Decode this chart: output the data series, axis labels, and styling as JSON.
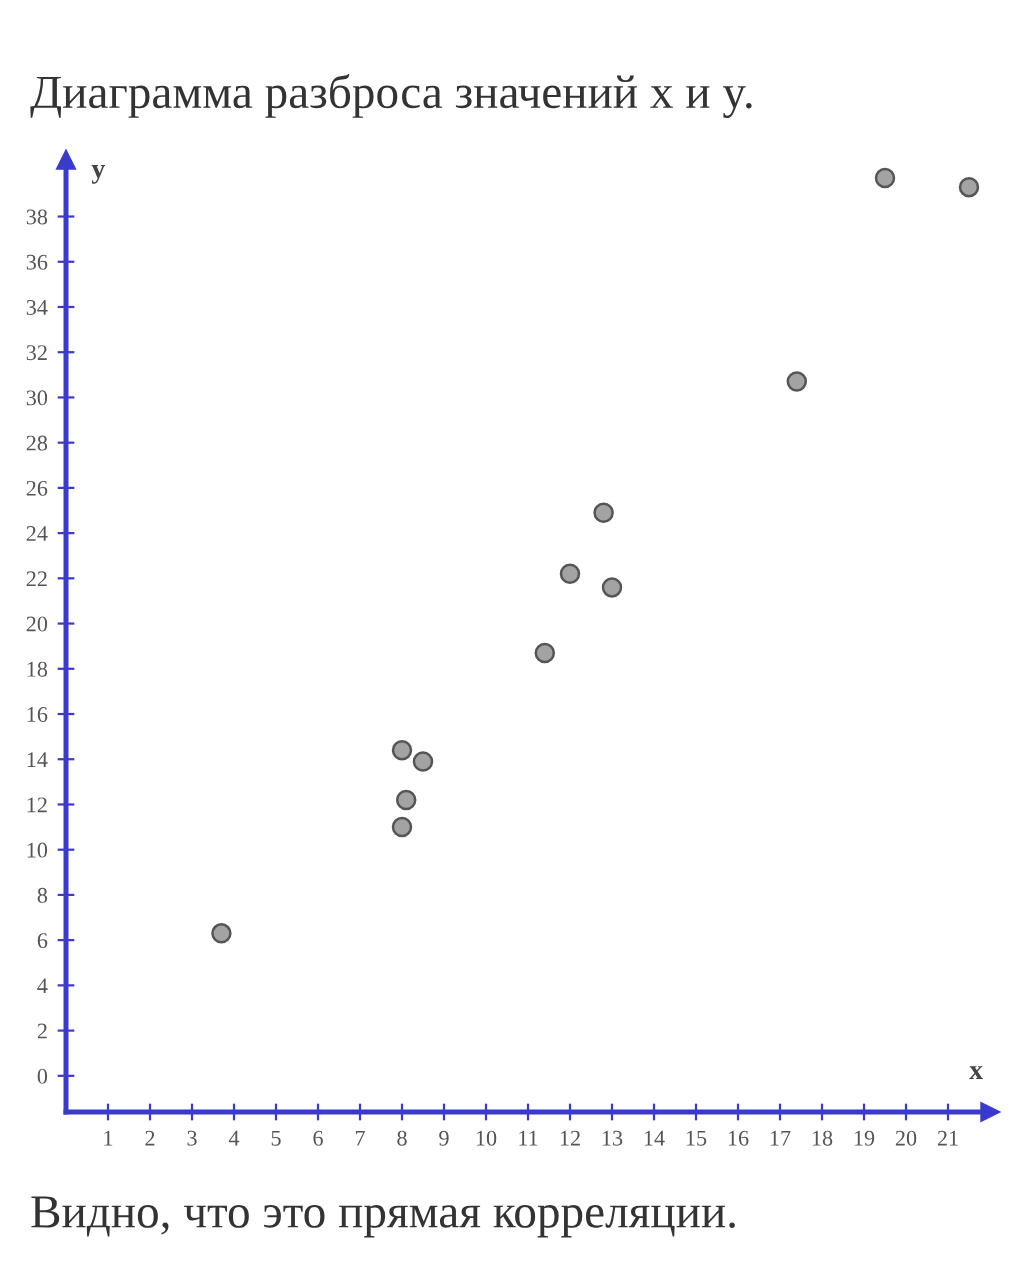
{
  "chart_data": {
    "type": "scatter",
    "title": "Диаграмма разброса значений x и y.",
    "xlabel": "x",
    "ylabel": "y",
    "annotations": [
      "Видно, что это прямая корреляции."
    ],
    "x": [
      3.7,
      8.0,
      8.5,
      8.1,
      8.0,
      11.4,
      12.0,
      12.8,
      13.0,
      17.4,
      19.5,
      21.5
    ],
    "series": [
      {
        "color": "#a3a3a3",
        "values": [
          6.3,
          14.4,
          13.9,
          12.2,
          11.0,
          18.7,
          22.2,
          24.9,
          21.6,
          30.7,
          39.7,
          39.3
        ]
      }
    ],
    "marker": "circle",
    "xlim": [
      0,
      22
    ],
    "ylim": [
      -1.6,
      40.5
    ],
    "xticks": [
      1,
      2,
      3,
      4,
      5,
      6,
      7,
      8,
      9,
      10,
      11,
      12,
      13,
      14,
      15,
      16,
      17,
      18,
      19,
      20,
      21
    ],
    "yticks": [
      0,
      2,
      4,
      6,
      8,
      10,
      12,
      14,
      16,
      18,
      20,
      22,
      24,
      26,
      28,
      30,
      32,
      34,
      36,
      38
    ],
    "grid": false
  }
}
